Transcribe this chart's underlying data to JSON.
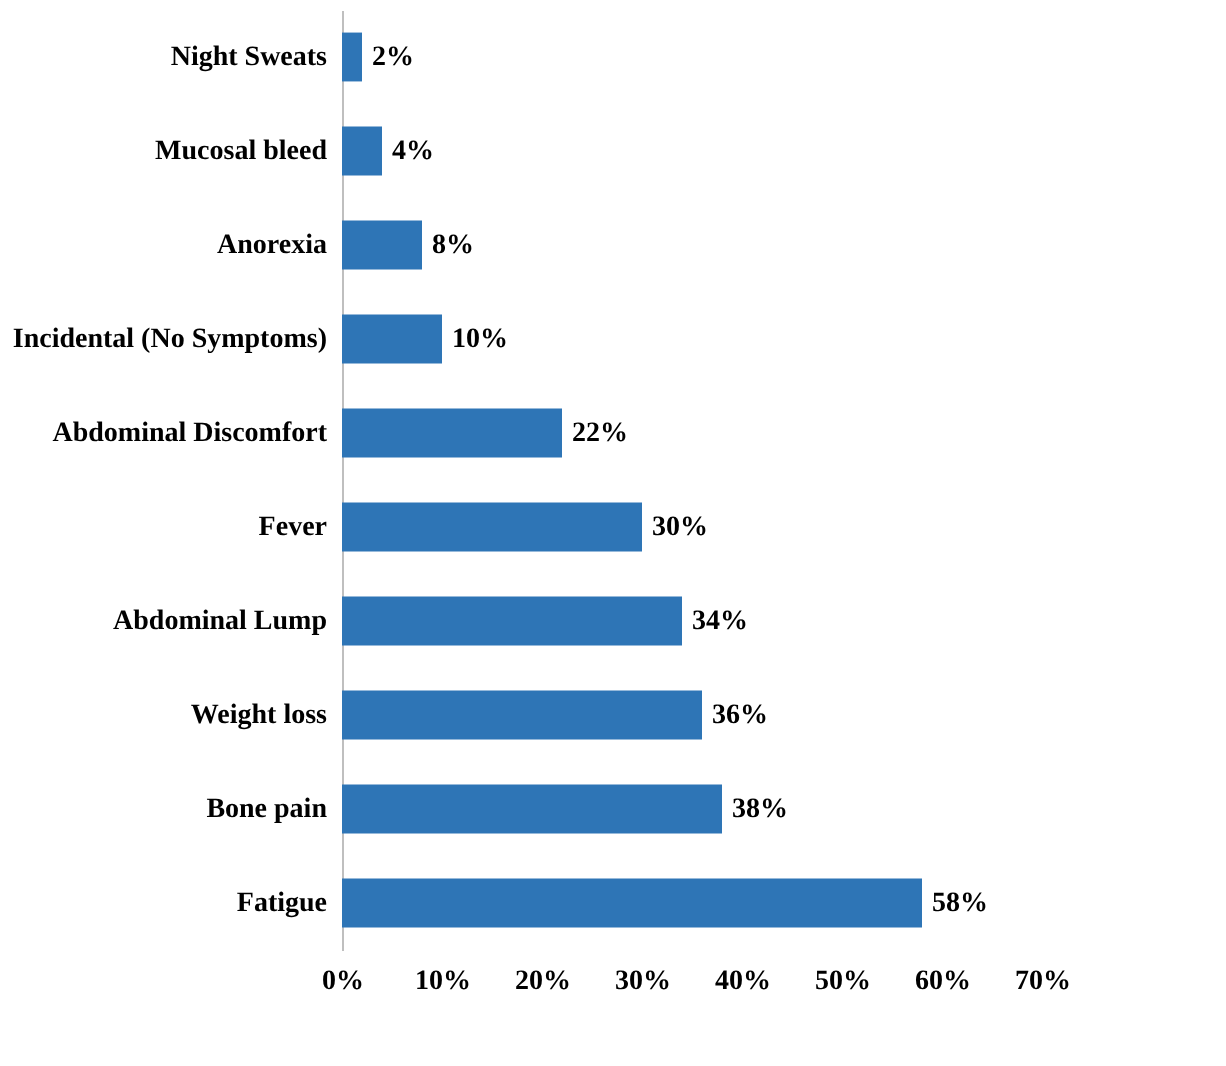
{
  "chart_data": {
    "type": "bar",
    "orientation": "horizontal",
    "categories": [
      "Night Sweats",
      "Mucosal bleed",
      "Anorexia",
      "Incidental (No Symptoms)",
      "Abdominal Discomfort",
      "Fever",
      "Abdominal Lump",
      "Weight loss",
      "Bone pain",
      "Fatigue"
    ],
    "values": [
      2,
      4,
      8,
      10,
      22,
      30,
      34,
      36,
      38,
      58
    ],
    "value_labels": [
      "2%",
      "4%",
      "8%",
      "10%",
      "22%",
      "30%",
      "34%",
      "36%",
      "38%",
      "58%"
    ],
    "color": "#2e75b6",
    "xlim": [
      0,
      70
    ],
    "xticks": [
      {
        "value": 0,
        "label": "0%"
      },
      {
        "value": 10,
        "label": "10%"
      },
      {
        "value": 20,
        "label": "20%"
      },
      {
        "value": 30,
        "label": "30%"
      },
      {
        "value": 40,
        "label": "40%"
      },
      {
        "value": 50,
        "label": "50%"
      },
      {
        "value": 60,
        "label": "60%"
      },
      {
        "value": 70,
        "label": "70%"
      }
    ],
    "grid": false
  }
}
